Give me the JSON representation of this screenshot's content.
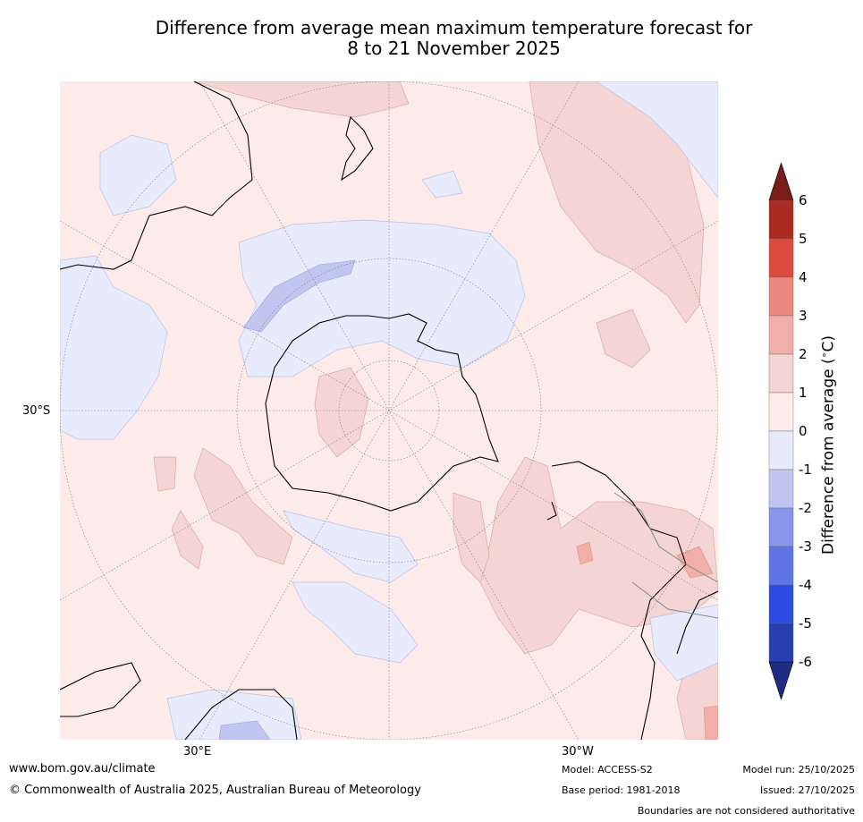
{
  "title": {
    "line1": "Difference from average mean maximum temperature forecast for",
    "line2": "8 to 21 November 2025"
  },
  "map": {
    "projection": "south-polar-stereographic",
    "lat_label": "30°S",
    "lon_labels": {
      "east": "30°E",
      "west": "30°W"
    }
  },
  "colorbar": {
    "title": "Difference from average (°C)",
    "title_main": "Difference from average (",
    "title_sup": "∘",
    "title_end": "C)",
    "ticks": [
      "6",
      "5",
      "4",
      "3",
      "2",
      "1",
      "0",
      "-1",
      "-2",
      "-3",
      "-4",
      "-5",
      "-6"
    ],
    "colors_top_to_bottom": [
      "#7b1e1a",
      "#ab2a22",
      "#dc4b3e",
      "#ea8a80",
      "#f0afa8",
      "#f5d5d3",
      "#fcebe8",
      "#e8ebfb",
      "#c0c6f0",
      "#8795ea",
      "#5f74e4",
      "#2c4be0",
      "#273fae",
      "#1e2c85"
    ]
  },
  "footer": {
    "url": "www.bom.gov.au/climate",
    "copyright": "© Commonwealth of Australia 2025, Australian Bureau of Meteorology",
    "model": "Model: ACCESS-S2",
    "base_period": "Base period: 1981-2018",
    "model_run": "Model run: 25/10/2025",
    "issued": "Issued: 27/10/2025",
    "disclaimer": "Boundaries are not considered authoritative"
  }
}
